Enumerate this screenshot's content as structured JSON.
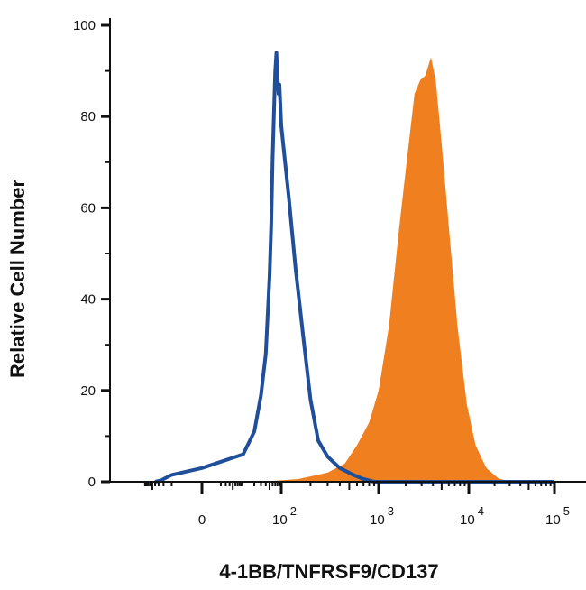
{
  "chart_data": {
    "type": "area",
    "title": "",
    "xlabel": "4-1BB/TNFRSF9/CD137",
    "ylabel": "Relative Cell Number",
    "x_scale": "biexponential",
    "x_ticks": [
      {
        "value": 0,
        "base": "0",
        "exp": ""
      },
      {
        "value": 100,
        "base": "10",
        "exp": "2"
      },
      {
        "value": 1000,
        "base": "10",
        "exp": "3"
      },
      {
        "value": 10000,
        "base": "10",
        "exp": "4"
      },
      {
        "value": 100000,
        "base": "10",
        "exp": "5"
      }
    ],
    "y_ticks": [
      0,
      20,
      40,
      60,
      80,
      100
    ],
    "ylim": [
      0,
      100
    ],
    "grid": false,
    "legend": "none",
    "series": [
      {
        "style": "outline",
        "color": "#1f4e9a",
        "points": [
          [
            -40,
            0
          ],
          [
            -25,
            0.3
          ],
          [
            -10,
            1.5
          ],
          [
            0,
            3
          ],
          [
            10,
            6
          ],
          [
            20,
            11
          ],
          [
            30,
            19
          ],
          [
            40,
            28
          ],
          [
            50,
            45
          ],
          [
            55,
            56
          ],
          [
            60,
            71
          ],
          [
            65,
            81
          ],
          [
            70,
            90
          ],
          [
            75,
            94
          ],
          [
            80,
            89
          ],
          [
            85,
            85
          ],
          [
            90,
            87
          ],
          [
            100,
            78
          ],
          [
            120,
            62
          ],
          [
            140,
            47
          ],
          [
            170,
            31
          ],
          [
            200,
            18
          ],
          [
            240,
            9
          ],
          [
            300,
            5.5
          ],
          [
            400,
            3
          ],
          [
            550,
            1.5
          ],
          [
            700,
            0.6
          ],
          [
            900,
            0
          ],
          [
            100000,
            0
          ]
        ]
      },
      {
        "style": "filled",
        "color": "#f07f20",
        "points": [
          [
            -40,
            0
          ],
          [
            60,
            0.2
          ],
          [
            150,
            0.6
          ],
          [
            300,
            2
          ],
          [
            450,
            4
          ],
          [
            600,
            8
          ],
          [
            800,
            13
          ],
          [
            1000,
            20
          ],
          [
            1300,
            34
          ],
          [
            1700,
            56
          ],
          [
            2100,
            72
          ],
          [
            2500,
            85
          ],
          [
            2900,
            88
          ],
          [
            3300,
            89
          ],
          [
            3800,
            93
          ],
          [
            4300,
            88
          ],
          [
            5000,
            74
          ],
          [
            6000,
            56
          ],
          [
            7500,
            34
          ],
          [
            9500,
            17
          ],
          [
            12000,
            8
          ],
          [
            16000,
            3
          ],
          [
            22000,
            0.8
          ],
          [
            30000,
            0
          ],
          [
            100000,
            0
          ]
        ]
      }
    ]
  }
}
